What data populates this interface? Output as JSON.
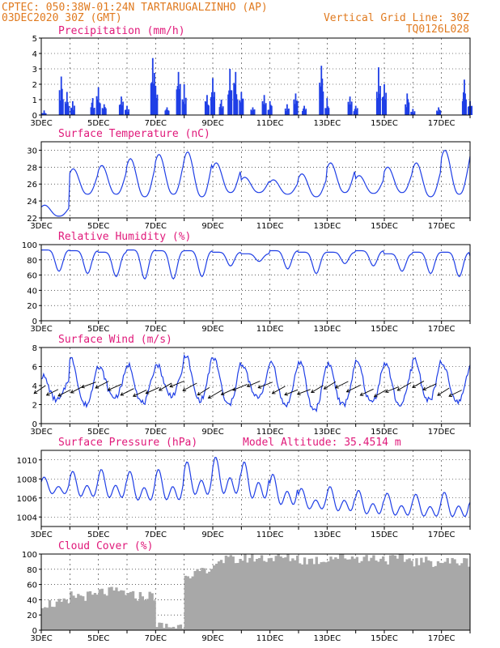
{
  "header": {
    "line1": "CPTEC:   050:38W-01:24N  TARTARUGALZINHO (AP)",
    "line2": "03DEC2020 30Z (GMT)",
    "grid_note": "Vertical Grid Line: 30Z",
    "code": "TQ0126L028"
  },
  "x_ticks": [
    "3DEC",
    "5DEC",
    "7DEC",
    "9DEC",
    "11DEC",
    "13DEC",
    "15DEC",
    "17DEC"
  ],
  "colors": {
    "header": "#e07a1f",
    "title": "#e0197a",
    "line": "#1f3fe6",
    "cloud": "#a8a8a8",
    "arrow": "#000000"
  },
  "chart_data": [
    {
      "type": "bar",
      "title": "Precipitation (mm/h)",
      "ylim": [
        0,
        5
      ],
      "yticks": [
        0,
        1,
        2,
        3,
        4,
        5
      ],
      "peaks": [
        {
          "day": 3.1,
          "value": 0.3
        },
        {
          "day": 3.7,
          "value": 2.5
        },
        {
          "day": 3.9,
          "value": 1.5
        },
        {
          "day": 4.1,
          "value": 0.9
        },
        {
          "day": 4.8,
          "value": 1.1
        },
        {
          "day": 5.0,
          "value": 1.8
        },
        {
          "day": 5.2,
          "value": 0.7
        },
        {
          "day": 5.8,
          "value": 1.2
        },
        {
          "day": 6.0,
          "value": 0.6
        },
        {
          "day": 6.9,
          "value": 3.7
        },
        {
          "day": 7.0,
          "value": 1.9
        },
        {
          "day": 7.4,
          "value": 0.5
        },
        {
          "day": 7.8,
          "value": 2.8
        },
        {
          "day": 8.0,
          "value": 2.0
        },
        {
          "day": 8.8,
          "value": 1.3
        },
        {
          "day": 9.0,
          "value": 2.4
        },
        {
          "day": 9.3,
          "value": 1.0
        },
        {
          "day": 9.6,
          "value": 3.0
        },
        {
          "day": 9.8,
          "value": 2.8
        },
        {
          "day": 10.0,
          "value": 1.5
        },
        {
          "day": 10.4,
          "value": 0.5
        },
        {
          "day": 10.8,
          "value": 1.3
        },
        {
          "day": 11.0,
          "value": 0.9
        },
        {
          "day": 11.6,
          "value": 0.7
        },
        {
          "day": 11.9,
          "value": 1.4
        },
        {
          "day": 12.2,
          "value": 0.6
        },
        {
          "day": 12.8,
          "value": 3.2
        },
        {
          "day": 13.0,
          "value": 1.1
        },
        {
          "day": 13.8,
          "value": 1.2
        },
        {
          "day": 14.0,
          "value": 0.6
        },
        {
          "day": 14.8,
          "value": 3.1
        },
        {
          "day": 15.0,
          "value": 2.0
        },
        {
          "day": 15.8,
          "value": 1.4
        },
        {
          "day": 16.0,
          "value": 0.4
        },
        {
          "day": 16.9,
          "value": 0.5
        },
        {
          "day": 17.8,
          "value": 2.3
        },
        {
          "day": 18.0,
          "value": 0.9
        }
      ]
    },
    {
      "type": "line",
      "title": "Surface Temperature (nC)",
      "ylim": [
        22,
        31
      ],
      "yticks": [
        22,
        24,
        26,
        28,
        30
      ],
      "daily_max": [
        23.5,
        27.8,
        28.2,
        29.0,
        29.5,
        29.8,
        28.5,
        26.8,
        26.5,
        27.2,
        28.5,
        27.0,
        28.0,
        28.5,
        30.0,
        30.2,
        29.7
      ],
      "daily_min": [
        22.2,
        24.8,
        24.8,
        24.5,
        24.8,
        24.5,
        25.0,
        25.0,
        24.8,
        24.5,
        25.0,
        24.9,
        25.0,
        24.5,
        24.8,
        24.9,
        26.0
      ]
    },
    {
      "type": "line",
      "title": "Relative Humidity (%)",
      "ylim": [
        0,
        100
      ],
      "yticks": [
        0,
        20,
        40,
        60,
        80,
        100
      ],
      "daily_max": [
        93,
        92,
        90,
        93,
        92,
        92,
        90,
        88,
        92,
        90,
        90,
        92,
        88,
        90,
        90,
        85,
        83
      ],
      "daily_min": [
        65,
        62,
        58,
        55,
        55,
        58,
        72,
        78,
        68,
        62,
        75,
        72,
        65,
        62,
        58,
        52,
        58
      ]
    },
    {
      "type": "line",
      "title": "Surface Wind (m/s)",
      "ylim": [
        0,
        8
      ],
      "yticks": [
        0,
        2,
        4,
        6,
        8
      ],
      "daily_max": [
        5.0,
        6.8,
        5.8,
        6.2,
        6.2,
        7.2,
        6.8,
        6.0,
        6.5,
        6.5,
        6.3,
        6.5,
        6.3,
        6.8,
        6.2,
        6.0,
        6.8
      ],
      "daily_min": [
        2.5,
        2.0,
        2.8,
        2.2,
        3.0,
        2.5,
        2.0,
        2.8,
        2.0,
        1.5,
        2.0,
        2.3,
        2.0,
        2.5,
        2.3,
        2.2,
        3.0
      ],
      "wind_arrow_hint": "arrows point toward the southwest"
    },
    {
      "type": "line",
      "title": "Surface Pressure (hPa)",
      "subtitle": "Model Altitude: 35.4514 m",
      "ylim": [
        1003,
        1011
      ],
      "yticks": [
        1004,
        1006,
        1008,
        1010
      ],
      "daily_max": [
        1008.2,
        1008.8,
        1009.0,
        1008.8,
        1009.0,
        1009.8,
        1010.3,
        1009.8,
        1008.5,
        1007.0,
        1007.2,
        1006.8,
        1006.5,
        1006.4,
        1006.6,
        1006.2,
        1005.8
      ],
      "daily_min": [
        1006.0,
        1005.5,
        1005.3,
        1005.0,
        1005.0,
        1005.5,
        1005.5,
        1005.0,
        1004.5,
        1004.3,
        1004.0,
        1003.7,
        1003.6,
        1003.5,
        1003.4,
        1003.4,
        1003.3
      ]
    },
    {
      "type": "bar",
      "title": "Cloud Cover (%)",
      "ylim": [
        0,
        100
      ],
      "yticks": [
        0,
        20,
        40,
        60,
        80,
        100
      ],
      "daily_level": [
        35,
        45,
        50,
        45,
        5,
        75,
        92,
        95,
        95,
        92,
        96,
        95,
        93,
        90,
        90,
        88,
        90
      ]
    }
  ]
}
